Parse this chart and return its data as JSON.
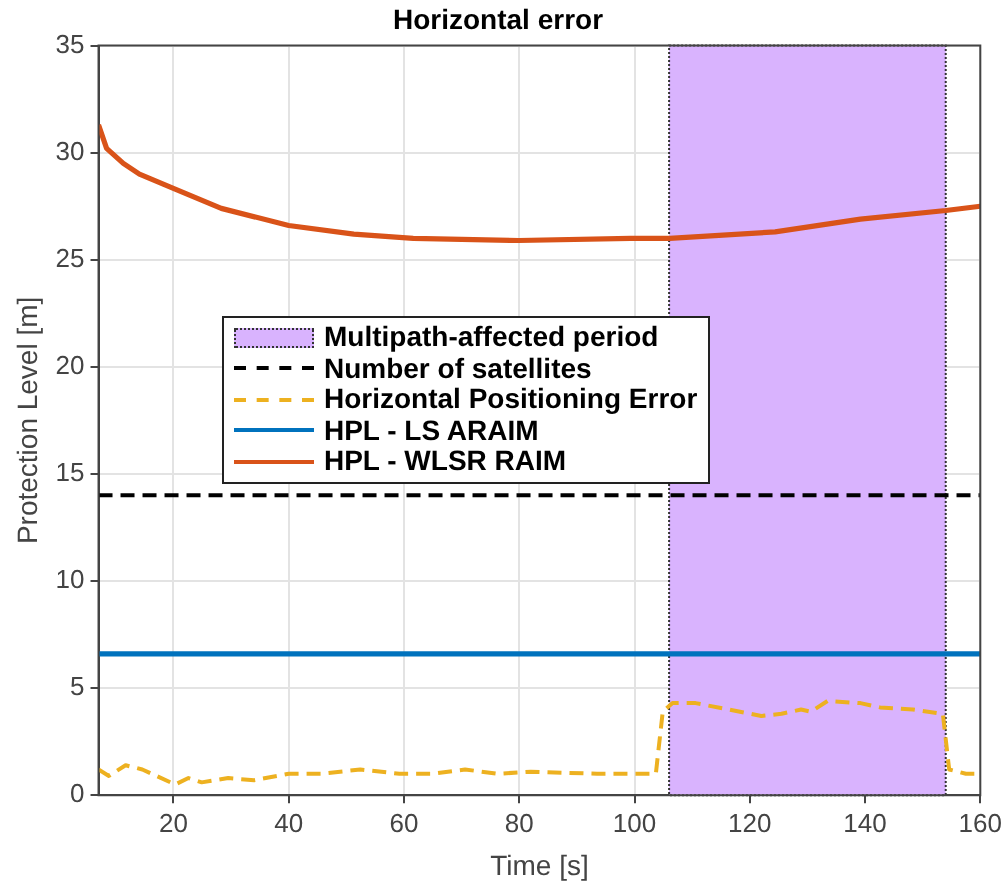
{
  "chart_data": {
    "type": "line",
    "title": "Horizontal error",
    "xlabel": "Time [s]",
    "ylabel": "Protection Level [m]",
    "xlim": [
      7,
      160
    ],
    "xticks": [
      20,
      40,
      60,
      80,
      100,
      120,
      140,
      160
    ],
    "ylim": [
      0,
      35
    ],
    "yticks": [
      0,
      5,
      10,
      15,
      20,
      25,
      30,
      35
    ],
    "grid": true,
    "legend": "left",
    "bands": [
      {
        "axis": "x",
        "from": 106,
        "to": 154,
        "label": "Multipath-affected period",
        "color": "#d9b3fe"
      }
    ],
    "series": [
      {
        "name": "Number of satellites",
        "color": "#000000",
        "line_style": "dashed",
        "x": [
          7,
          160
        ],
        "values": [
          14,
          14
        ]
      },
      {
        "name": "Horizontal Positioning Error",
        "color": "#edb120",
        "line_style": "dashed",
        "x": [
          7,
          8.8,
          11.7,
          14.6,
          20.3,
          22.6,
          24.9,
          29.5,
          34,
          40,
          45.6,
          52.4,
          59.2,
          64.9,
          70.6,
          76.3,
          82,
          93.5,
          103.7,
          104.9,
          106.6,
          110.6,
          116.3,
          122,
          125.5,
          128.9,
          130.6,
          133.5,
          139.2,
          142.6,
          148.3,
          153.5,
          154.6,
          157.5,
          160
        ],
        "values": [
          1.2,
          0.9,
          1.4,
          1.2,
          0.5,
          0.8,
          0.6,
          0.8,
          0.7,
          1.0,
          1.0,
          1.2,
          1.0,
          1.0,
          1.2,
          1.0,
          1.1,
          1.0,
          1.0,
          3.9,
          4.3,
          4.3,
          4.0,
          3.7,
          3.8,
          4.0,
          3.9,
          4.4,
          4.3,
          4.1,
          4.0,
          3.8,
          1.2,
          1.0,
          1.0
        ]
      },
      {
        "name": "HPL - LS ARAIM",
        "color": "#0072bd",
        "line_style": "solid",
        "x": [
          7,
          160
        ],
        "values": [
          6.6,
          6.6
        ]
      },
      {
        "name": "HPL - WLSR RAIM",
        "color": "#d95319",
        "line_style": "solid",
        "x": [
          7,
          8.4,
          11.3,
          14.1,
          20.3,
          28.3,
          40,
          51.3,
          61.6,
          79.9,
          99.3,
          106.1,
          124.4,
          139.2,
          154,
          160
        ],
        "values": [
          31.3,
          30.2,
          29.5,
          29.0,
          28.3,
          27.4,
          26.6,
          26.2,
          26.0,
          25.9,
          26.0,
          26.0,
          26.3,
          26.9,
          27.3,
          27.5
        ]
      }
    ]
  }
}
